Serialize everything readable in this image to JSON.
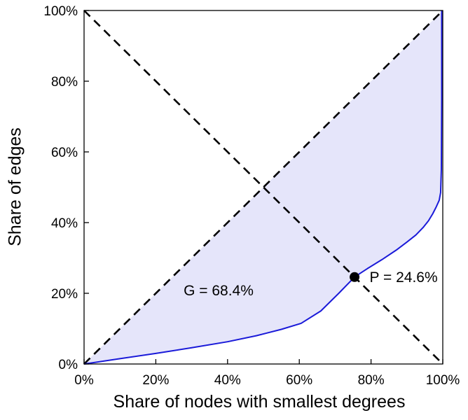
{
  "figure": {
    "background": "#ffffff"
  },
  "chart_data": {
    "type": "line",
    "title": "",
    "xlabel": "Share of nodes with smallest degrees",
    "ylabel": "Share of edges",
    "xlim": [
      0,
      100
    ],
    "ylim": [
      0,
      100
    ],
    "grid": false,
    "box": true,
    "x_tick_values": [
      0,
      20,
      40,
      60,
      80,
      100
    ],
    "x_tick_labels": [
      "0%",
      "20%",
      "40%",
      "60%",
      "80%",
      "100%"
    ],
    "y_tick_values": [
      0,
      20,
      40,
      60,
      80,
      100
    ],
    "y_tick_labels": [
      "0%",
      "20%",
      "40%",
      "60%",
      "80%",
      "100%"
    ],
    "colors": {
      "curve": "#1a1ad9",
      "fill": "#e2e2f9",
      "dashed_lines": "#000000",
      "point": "#000000",
      "axis": "#000000"
    },
    "series": [
      {
        "name": "lorenz-curve",
        "style": "solid",
        "color": "#1a1ad9",
        "width": 2,
        "x": [
          0,
          10,
          20,
          30,
          40,
          48,
          55,
          60.5,
          66,
          71,
          75.4,
          79,
          83,
          87,
          90,
          92.5,
          94.5,
          96,
          97.2,
          98.2,
          99,
          99.4,
          99.6,
          99.7,
          99.7
        ],
        "y": [
          0,
          1.5,
          3,
          4.6,
          6.3,
          8,
          9.8,
          11.5,
          15,
          20,
          24.6,
          27,
          29.5,
          32.2,
          34.5,
          36.5,
          38.6,
          40.5,
          42.5,
          44.5,
          46.3,
          48.5,
          55,
          75,
          100
        ]
      },
      {
        "name": "equality-line",
        "style": "dashed",
        "color": "#000000",
        "width": 2.6,
        "x": [
          0,
          100
        ],
        "y": [
          0,
          100
        ]
      },
      {
        "name": "anti-diagonal-line",
        "style": "dashed",
        "color": "#000000",
        "width": 2.6,
        "x": [
          0,
          100
        ],
        "y": [
          100,
          0
        ]
      }
    ],
    "fill_between": {
      "upper": "equality-line",
      "lower": "lorenz-curve",
      "color": "#e2e2f9",
      "opacity": 0.9
    },
    "point": {
      "x": 75.4,
      "y": 24.6,
      "radius": 7,
      "color": "#000000"
    },
    "annotations": [
      {
        "id": "gini",
        "text": "G = 68.4%",
        "x": 37.5,
        "y": 20.8,
        "anchor": "middle"
      },
      {
        "id": "p",
        "text": "P = 24.6%",
        "x": 79.6,
        "y": 24.6,
        "anchor": "start"
      }
    ]
  }
}
